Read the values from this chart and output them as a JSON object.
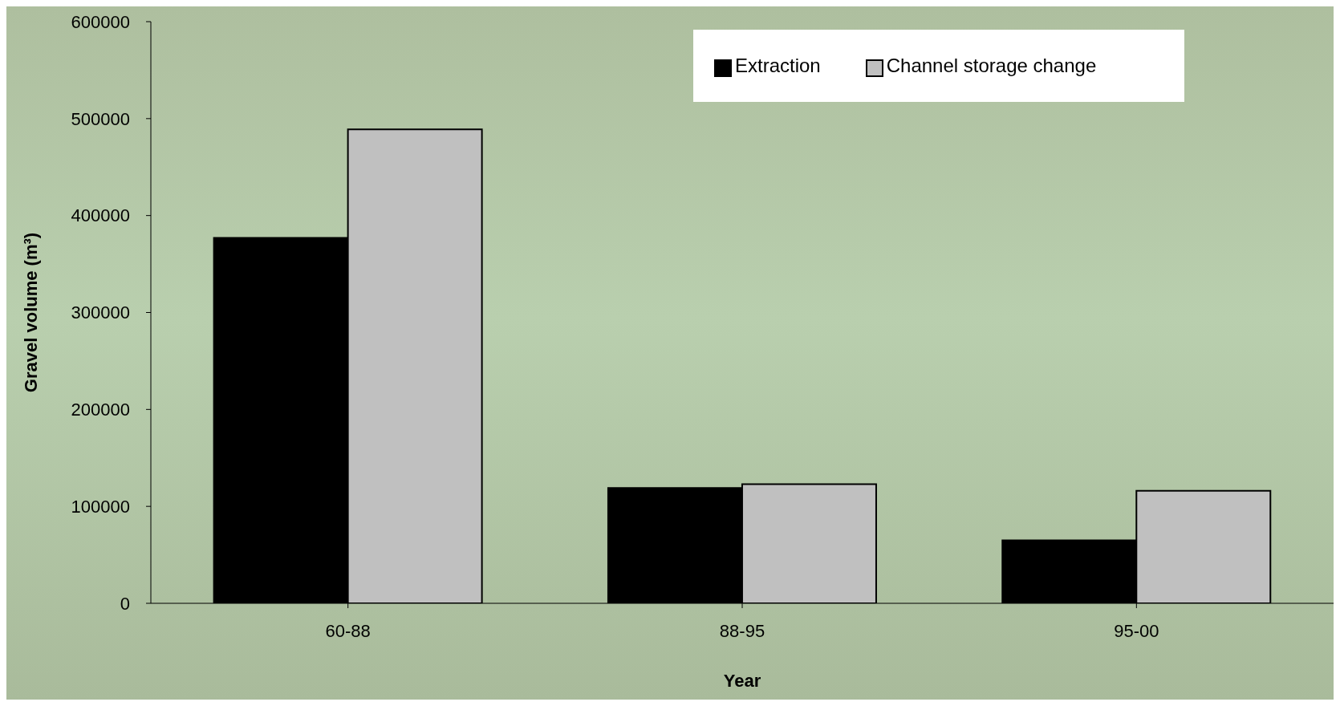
{
  "chart_data": {
    "type": "bar",
    "xlabel": "Year",
    "ylabel": "Gravel volume (m³)",
    "categories": [
      "60-88",
      "88-95",
      "95-00"
    ],
    "series": [
      {
        "name": "Extraction",
        "color": "#000000",
        "values": [
          377000,
          119000,
          65000
        ]
      },
      {
        "name": "Channel storage change",
        "color": "#c0c0c0",
        "values": [
          489000,
          123000,
          116000
        ]
      }
    ],
    "ylim": [
      0,
      600000
    ],
    "yticks": [
      0,
      100000,
      200000,
      300000,
      400000,
      500000,
      600000
    ],
    "grid": false,
    "legend": "top right"
  }
}
